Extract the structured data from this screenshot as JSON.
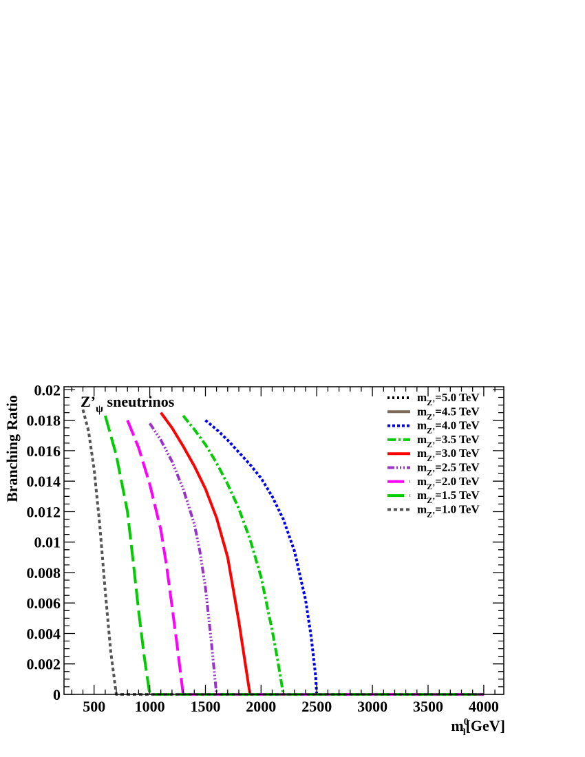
{
  "chart_data": {
    "type": "line",
    "title": "Z’_ψ sneutrinos",
    "title_main": "Z’",
    "title_sub": "ψ",
    "title_rest": " sneutrinos",
    "ylabel": "Branching Ratio",
    "xlabel_main": "m",
    "xlabel_sub": "l",
    "xlabel_sup": "0",
    "xlabel_rest": "[GeV]",
    "xlim": [
      230,
      4180
    ],
    "ylim": [
      0,
      0.0202
    ],
    "x_ticks": [
      500,
      1000,
      1500,
      2000,
      2500,
      3000,
      3500,
      4000
    ],
    "x_tick_labels": [
      "500",
      "1000",
      "1500",
      "2000",
      "2500",
      "3000",
      "3500",
      "4000"
    ],
    "y_ticks": [
      0,
      0.002,
      0.004,
      0.006,
      0.008,
      0.01,
      0.012,
      0.014,
      0.016,
      0.018,
      0.02
    ],
    "y_tick_labels": [
      "0",
      "0.002",
      "0.004",
      "0.006",
      "0.008",
      "0.01",
      "0.012",
      "0.014",
      "0.016",
      "0.018",
      "0.02"
    ],
    "grid": false,
    "legend_position": "top-right",
    "series": [
      {
        "name": "m_Z’=5.0 TeV",
        "legend_main": "m",
        "legend_sub": "Z’",
        "legend_rest": "=5.0 TeV",
        "color": "#000000",
        "dash": "3,4",
        "style": "dash-dot",
        "x": [],
        "y": []
      },
      {
        "name": "m_Z’=4.5 TeV",
        "legend_main": "m",
        "legend_sub": "Z’",
        "legend_rest": "=4.5 TeV",
        "color": "#7f6a5a",
        "dash": "",
        "style": "solid",
        "x": [],
        "y": []
      },
      {
        "name": "m_Z’=4.0 TeV",
        "legend_main": "m",
        "legend_sub": "Z’",
        "legend_rest": "=4.0 TeV",
        "color": "#0000ee",
        "dash": "4,3",
        "style": "dotted",
        "x": [
          1500,
          1600,
          1700,
          1800,
          1900,
          2000,
          2100,
          2200,
          2300,
          2400,
          2450,
          2490,
          2500,
          4000
        ],
        "y": [
          0.018,
          0.0174,
          0.0167,
          0.0159,
          0.0151,
          0.0142,
          0.013,
          0.0115,
          0.0094,
          0.0062,
          0.0038,
          0.0012,
          0,
          0
        ]
      },
      {
        "name": "m_Z’=3.5 TeV",
        "legend_main": "m",
        "legend_sub": "Z’",
        "legend_rest": "=3.5 TeV",
        "color": "#00cc00",
        "dash": "12,4,3,4",
        "style": "dash-dot",
        "x": [
          1300,
          1400,
          1500,
          1600,
          1700,
          1800,
          1900,
          2000,
          2100,
          2150,
          2200,
          4000
        ],
        "y": [
          0.0183,
          0.0174,
          0.0164,
          0.0152,
          0.0138,
          0.0122,
          0.0102,
          0.0077,
          0.0042,
          0.0022,
          0,
          0
        ]
      },
      {
        "name": "m_Z’=3.0 TeV",
        "legend_main": "m",
        "legend_sub": "Z’",
        "legend_rest": "=3.0 TeV",
        "color": "#ff0000",
        "dash": "",
        "style": "solid",
        "x": [
          1100,
          1200,
          1300,
          1400,
          1500,
          1600,
          1700,
          1800,
          1850,
          1900,
          4000
        ],
        "y": [
          0.0185,
          0.0175,
          0.0163,
          0.015,
          0.0135,
          0.0116,
          0.009,
          0.0048,
          0.0024,
          0,
          0
        ]
      },
      {
        "name": "m_Z’=2.5 TeV",
        "legend_main": "m",
        "legend_sub": "Z’",
        "legend_rest": "=2.5 TeV",
        "color": "#9933cc",
        "dash": "10,3,2,3,2,3,2,3",
        "style": "dash-dot-dot",
        "x": [
          1000,
          1100,
          1200,
          1300,
          1400,
          1450,
          1500,
          1550,
          1600,
          4000
        ],
        "y": [
          0.0178,
          0.0167,
          0.0153,
          0.0135,
          0.0112,
          0.0094,
          0.007,
          0.0037,
          0,
          0
        ]
      },
      {
        "name": "m_Z’=2.0 TeV",
        "legend_main": "m",
        "legend_sub": "Z’",
        "legend_rest": "=2.0 TeV",
        "color": "#ff00ff",
        "dash": "24,8",
        "style": "long-dash",
        "x": [
          800,
          900,
          1000,
          1100,
          1150,
          1200,
          1250,
          1300,
          4000
        ],
        "y": [
          0.018,
          0.0162,
          0.0138,
          0.0108,
          0.0085,
          0.0058,
          0.003,
          0,
          0
        ]
      },
      {
        "name": "m_Z’=1.5 TeV",
        "legend_main": "m",
        "legend_sub": "Z’",
        "legend_rest": "=1.5 TeV",
        "color": "#00cc00",
        "dash": "24,8",
        "style": "long-dash",
        "x": [
          600,
          700,
          800,
          850,
          900,
          950,
          1000,
          4000
        ],
        "y": [
          0.0183,
          0.0157,
          0.012,
          0.0088,
          0.0055,
          0.0025,
          0,
          0
        ]
      },
      {
        "name": "m_Z’=1.0 TeV",
        "legend_main": "m",
        "legend_sub": "Z’",
        "legend_rest": "=1.0 TeV",
        "color": "#555555",
        "dash": "5,4",
        "style": "dashed",
        "x": [
          400,
          450,
          500,
          550,
          600,
          650,
          700,
          4000
        ],
        "y": [
          0.0187,
          0.0173,
          0.0148,
          0.0112,
          0.0068,
          0.0028,
          0,
          0
        ]
      }
    ]
  }
}
